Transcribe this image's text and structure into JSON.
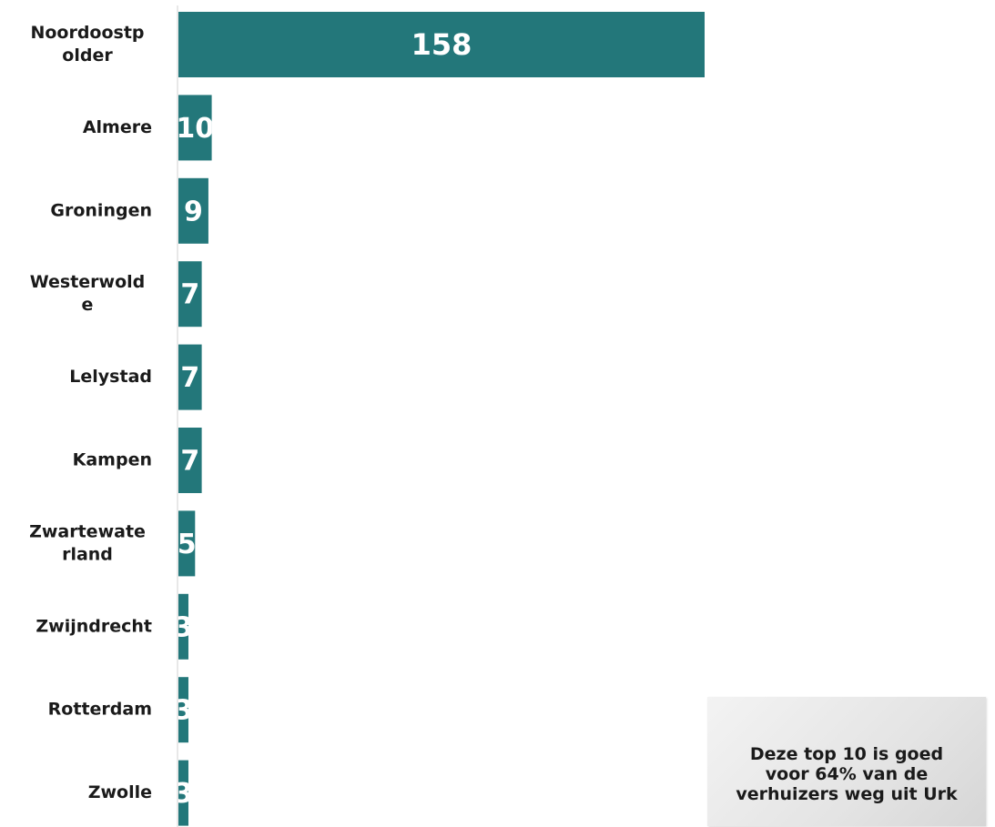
{
  "chart_data": {
    "type": "bar",
    "orientation": "horizontal",
    "categories": [
      "Noordoostpolder",
      "Almere",
      "Groningen",
      "Westerwolde",
      "Lelystad",
      "Kampen",
      "Zwartewaterland",
      "Zwijndrecht",
      "Rotterdam",
      "Zwolle"
    ],
    "category_label_lines": [
      [
        "Noordoostp",
        "older"
      ],
      [
        "Almere"
      ],
      [
        "Groningen"
      ],
      [
        "Westerwold",
        "e"
      ],
      [
        "Lelystad"
      ],
      [
        "Kampen"
      ],
      [
        "Zwartewate",
        "rland"
      ],
      [
        "Zwijndrecht"
      ],
      [
        "Rotterdam"
      ],
      [
        "Zwolle"
      ]
    ],
    "values": [
      158,
      10,
      9,
      7,
      7,
      7,
      5,
      3,
      3,
      3
    ],
    "data_labels": [
      "158",
      "10",
      "9",
      "7",
      "7",
      "7",
      "5",
      "3",
      "3",
      "3"
    ],
    "bar_color": "#23777a",
    "axis_line_color": "#d0d0d0",
    "xlim": [
      0,
      158
    ],
    "grid": false,
    "legend": false
  },
  "annotation": {
    "text": "Deze top 10 is goed voor 64% van de verhuizers weg uit Urk"
  }
}
